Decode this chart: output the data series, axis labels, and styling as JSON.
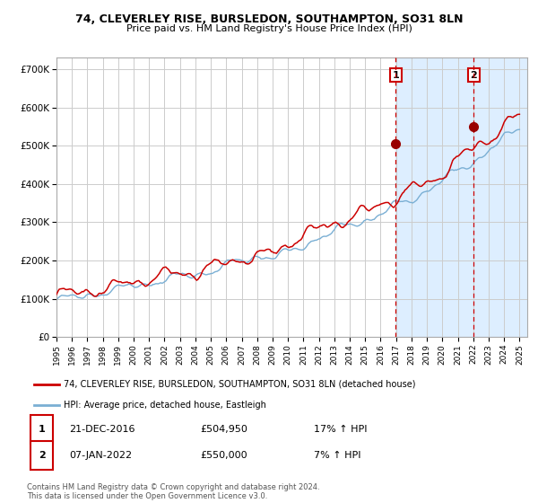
{
  "title1": "74, CLEVERLEY RISE, BURSLEDON, SOUTHAMPTON, SO31 8LN",
  "title2": "Price paid vs. HM Land Registry's House Price Index (HPI)",
  "x_start_year": 1995,
  "x_end_year": 2025,
  "ylim": [
    0,
    730000
  ],
  "yticks": [
    0,
    100000,
    200000,
    300000,
    400000,
    500000,
    600000,
    700000
  ],
  "ytick_labels": [
    "£0",
    "£100K",
    "£200K",
    "£300K",
    "£400K",
    "£500K",
    "£600K",
    "£700K"
  ],
  "sale1_year": 2016.97,
  "sale1_price": 504950,
  "sale2_year": 2022.03,
  "sale2_price": 550000,
  "sale1_label": "1",
  "sale2_label": "2",
  "red_line_color": "#cc0000",
  "blue_line_color": "#7aafd4",
  "shade_color": "#ddeeff",
  "dashed_line_color": "#cc0000",
  "dot_color": "#990000",
  "grid_color": "#cccccc",
  "bg_color": "#ffffff",
  "legend_line1": "74, CLEVERLEY RISE, BURSLEDON, SOUTHAMPTON, SO31 8LN (detached house)",
  "legend_line2": "HPI: Average price, detached house, Eastleigh",
  "table_row1": [
    "1",
    "21-DEC-2016",
    "£504,950",
    "17% ↑ HPI"
  ],
  "table_row2": [
    "2",
    "07-JAN-2022",
    "£550,000",
    "7% ↑ HPI"
  ],
  "footer": "Contains HM Land Registry data © Crown copyright and database right 2024.\nThis data is licensed under the Open Government Licence v3.0.",
  "seed": 42
}
